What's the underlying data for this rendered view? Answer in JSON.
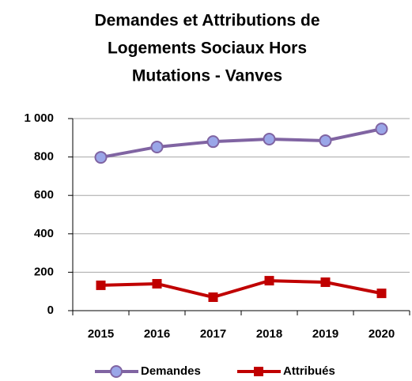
{
  "chart_data": {
    "type": "line",
    "title": [
      "Demandes et Attributions de",
      "Logements Sociaux Hors",
      "Mutations - Vanves"
    ],
    "categories": [
      "2015",
      "2016",
      "2017",
      "2018",
      "2019",
      "2020"
    ],
    "series": [
      {
        "name": "Demandes",
        "color": "#8064a2",
        "marker": "circle",
        "values": [
          798,
          852,
          880,
          893,
          885,
          946
        ]
      },
      {
        "name": "Attribués",
        "color": "#c00000",
        "marker": "square",
        "values": [
          132,
          140,
          70,
          156,
          148,
          90
        ]
      }
    ],
    "ylim": [
      0,
      1000
    ],
    "yticks": [
      0,
      200,
      400,
      600,
      800,
      {
        "value": 1000,
        "label": "1 000"
      }
    ],
    "grid": true
  }
}
